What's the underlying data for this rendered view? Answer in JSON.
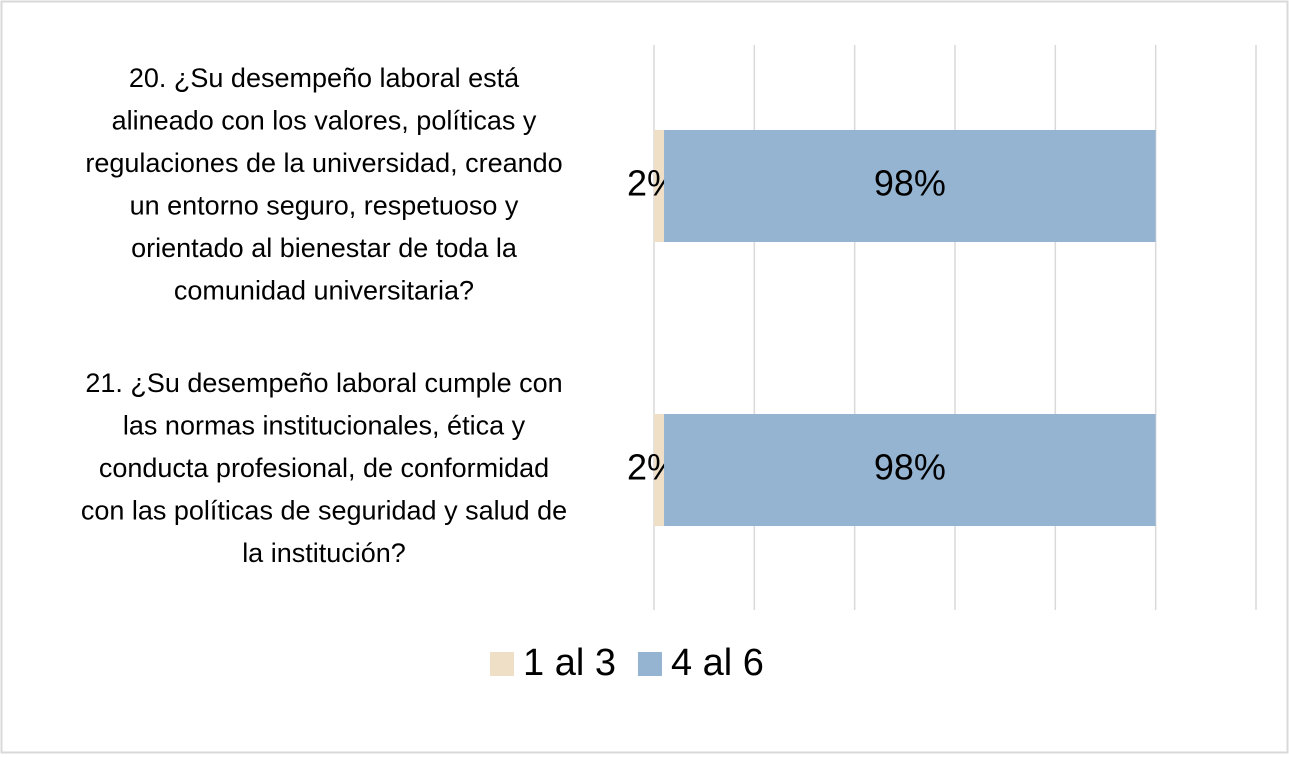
{
  "chart_data": {
    "type": "stacked_barh",
    "categories": [
      [
        "20. ¿Su desempeño laboral está",
        "alineado con los valores, políticas y",
        "regulaciones de la universidad, creando",
        "un entorno seguro, respetuoso y",
        "orientado al bienestar de toda la",
        "comunidad universitaria?"
      ],
      [
        "21. ¿Su desempeño laboral cumple con",
        "las normas institucionales, ética y",
        "conducta profesional, de conformidad",
        "con las políticas de seguridad y salud de",
        "la institución?"
      ]
    ],
    "series": [
      {
        "name": "1 al 3",
        "color": "#EEDFC6",
        "values": [
          2,
          2
        ],
        "value_labels": [
          "2%",
          "2%"
        ]
      },
      {
        "name": "4 al 6",
        "color": "#95B4D2",
        "values": [
          98,
          98
        ],
        "value_labels": [
          "98%",
          "98%"
        ]
      }
    ],
    "xlim": [
      0,
      120
    ],
    "xticks": [
      0,
      20,
      40,
      60,
      80,
      100,
      120
    ],
    "grid": true,
    "legend": "bottom"
  }
}
